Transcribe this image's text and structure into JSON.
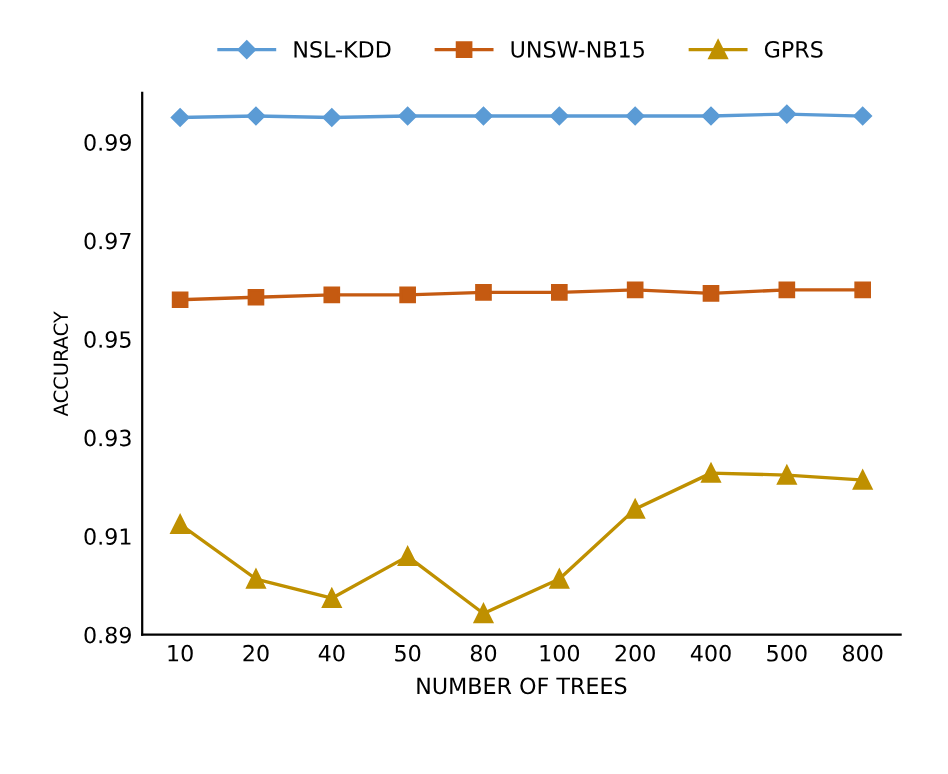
{
  "chart_data": {
    "type": "line",
    "xlabel": "NUMBER OF TREES",
    "ylabel": "ACCURACY",
    "categories": [
      "10",
      "20",
      "40",
      "50",
      "80",
      "100",
      "200",
      "400",
      "500",
      "800"
    ],
    "series": [
      {
        "name": "NSL-KDD",
        "color": "#5b9bd5",
        "marker": "diamond",
        "values": [
          0.995,
          0.9953,
          0.995,
          0.9953,
          0.9953,
          0.9953,
          0.9953,
          0.9953,
          0.9957,
          0.9953
        ]
      },
      {
        "name": "UNSW-NB15",
        "color": "#c55a11",
        "marker": "square",
        "values": [
          0.958,
          0.9585,
          0.959,
          0.959,
          0.9595,
          0.9595,
          0.96,
          0.9593,
          0.96,
          0.96
        ]
      },
      {
        "name": "GPRS",
        "color": "#bf9000",
        "marker": "triangle",
        "values": [
          0.9124,
          0.9013,
          0.8974,
          0.9059,
          0.8943,
          0.9013,
          0.9155,
          0.9228,
          0.9224,
          0.9214
        ]
      }
    ],
    "ylim": [
      0.89,
      1.0
    ],
    "yticks": [
      0.89,
      0.91,
      0.93,
      0.95,
      0.97,
      0.99
    ],
    "grid": false,
    "legend": "top"
  }
}
